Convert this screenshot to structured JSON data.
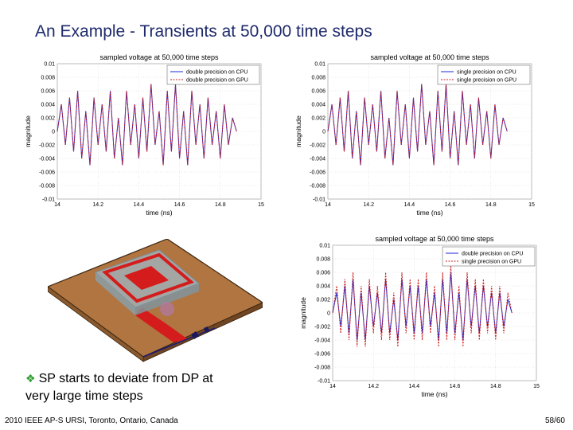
{
  "title": "An Example - Transients at 50,000 time steps",
  "caption": {
    "bullet_icon": "diamond-bullet-icon",
    "line1": "SP starts to deviate from DP at",
    "line2": "very large time steps"
  },
  "footer": {
    "left": "2010 IEEE AP-S URSI, Toronto, Ontario, Canada",
    "right": "58/60"
  },
  "figure_icon": "antenna-device-3d-model",
  "chart_data": [
    {
      "type": "line",
      "title": "sampled voltage at 50,000 time steps",
      "xlabel": "time (ns)",
      "ylabel": "magnitude",
      "xlim": [
        14,
        15
      ],
      "ylim": [
        -0.01,
        0.01
      ],
      "xticks": [
        "14",
        "14.2",
        "14.4",
        "14.6",
        "14.8",
        "15"
      ],
      "yticks": [
        "0.01",
        "0.008",
        "0.006",
        "0.004",
        "0.002",
        "0",
        "-0.002",
        "-0.004",
        "-0.006",
        "-0.008",
        "-0.01"
      ],
      "grid": true,
      "legend": "top-right",
      "series": [
        {
          "name": "double precision on CPU",
          "color": "#1f2ad6",
          "style": "solid",
          "x": [
            14.0,
            14.02,
            14.04,
            14.06,
            14.08,
            14.1,
            14.12,
            14.14,
            14.16,
            14.18,
            14.2,
            14.22,
            14.24,
            14.26,
            14.28,
            14.3,
            14.32,
            14.34,
            14.36,
            14.38,
            14.4,
            14.42,
            14.44,
            14.46,
            14.48,
            14.5,
            14.52,
            14.54,
            14.56,
            14.58,
            14.6,
            14.62,
            14.64,
            14.66,
            14.68,
            14.7,
            14.72,
            14.74,
            14.76,
            14.78,
            14.8,
            14.82,
            14.84,
            14.86,
            14.88
          ],
          "y": [
            0.0,
            0.004,
            -0.002,
            0.005,
            -0.003,
            0.006,
            -0.004,
            0.003,
            -0.005,
            0.005,
            -0.002,
            0.004,
            -0.003,
            0.006,
            -0.004,
            0.002,
            -0.005,
            0.006,
            -0.002,
            0.004,
            -0.004,
            0.005,
            -0.003,
            0.007,
            -0.002,
            0.003,
            -0.005,
            0.006,
            -0.003,
            0.007,
            -0.004,
            0.003,
            -0.005,
            0.006,
            -0.002,
            0.004,
            -0.004,
            0.005,
            -0.002,
            0.003,
            -0.004,
            0.004,
            -0.002,
            0.002,
            0.0
          ]
        },
        {
          "name": "double precision on GPU",
          "color": "#cc2020",
          "style": "dotted",
          "x": [
            14.0,
            14.02,
            14.04,
            14.06,
            14.08,
            14.1,
            14.12,
            14.14,
            14.16,
            14.18,
            14.2,
            14.22,
            14.24,
            14.26,
            14.28,
            14.3,
            14.32,
            14.34,
            14.36,
            14.38,
            14.4,
            14.42,
            14.44,
            14.46,
            14.48,
            14.5,
            14.52,
            14.54,
            14.56,
            14.58,
            14.6,
            14.62,
            14.64,
            14.66,
            14.68,
            14.7,
            14.72,
            14.74,
            14.76,
            14.78,
            14.8,
            14.82,
            14.84,
            14.86,
            14.88
          ],
          "y": [
            0.0,
            0.004,
            -0.002,
            0.005,
            -0.003,
            0.006,
            -0.004,
            0.003,
            -0.005,
            0.005,
            -0.002,
            0.004,
            -0.003,
            0.006,
            -0.004,
            0.002,
            -0.005,
            0.006,
            -0.002,
            0.004,
            -0.004,
            0.005,
            -0.003,
            0.007,
            -0.002,
            0.003,
            -0.005,
            0.006,
            -0.003,
            0.007,
            -0.004,
            0.003,
            -0.005,
            0.006,
            -0.002,
            0.004,
            -0.004,
            0.005,
            -0.002,
            0.003,
            -0.004,
            0.004,
            -0.002,
            0.002,
            0.0
          ]
        }
      ]
    },
    {
      "type": "line",
      "title": "sampled voltage at 50,000 time steps",
      "xlabel": "time (ns)",
      "ylabel": "magnitude",
      "xlim": [
        14,
        15
      ],
      "ylim": [
        -0.01,
        0.01
      ],
      "xticks": [
        "14",
        "14.2",
        "14.4",
        "14.6",
        "14.8",
        "15"
      ],
      "yticks": [
        "0.01",
        "0.008",
        "0.006",
        "0.004",
        "0.002",
        "0",
        "-0.002",
        "-0.004",
        "-0.006",
        "-0.008",
        "-0.01"
      ],
      "grid": true,
      "legend": "top-right",
      "series": [
        {
          "name": "single precision on CPU",
          "color": "#1f2ad6",
          "style": "solid",
          "x": [
            14.0,
            14.02,
            14.04,
            14.06,
            14.08,
            14.1,
            14.12,
            14.14,
            14.16,
            14.18,
            14.2,
            14.22,
            14.24,
            14.26,
            14.28,
            14.3,
            14.32,
            14.34,
            14.36,
            14.38,
            14.4,
            14.42,
            14.44,
            14.46,
            14.48,
            14.5,
            14.52,
            14.54,
            14.56,
            14.58,
            14.6,
            14.62,
            14.64,
            14.66,
            14.68,
            14.7,
            14.72,
            14.74,
            14.76,
            14.78,
            14.8,
            14.82,
            14.84,
            14.86,
            14.88
          ],
          "y": [
            0.0,
            0.004,
            -0.002,
            0.005,
            -0.003,
            0.006,
            -0.004,
            0.003,
            -0.005,
            0.005,
            -0.002,
            0.004,
            -0.003,
            0.006,
            -0.004,
            0.002,
            -0.005,
            0.006,
            -0.002,
            0.004,
            -0.004,
            0.005,
            -0.003,
            0.007,
            -0.002,
            0.003,
            -0.005,
            0.006,
            -0.003,
            0.007,
            -0.004,
            0.003,
            -0.005,
            0.006,
            -0.002,
            0.004,
            -0.004,
            0.005,
            -0.002,
            0.003,
            -0.004,
            0.004,
            -0.002,
            0.002,
            0.0
          ]
        },
        {
          "name": "single precision on GPU",
          "color": "#cc2020",
          "style": "dotted",
          "x": [
            14.0,
            14.02,
            14.04,
            14.06,
            14.08,
            14.1,
            14.12,
            14.14,
            14.16,
            14.18,
            14.2,
            14.22,
            14.24,
            14.26,
            14.28,
            14.3,
            14.32,
            14.34,
            14.36,
            14.38,
            14.4,
            14.42,
            14.44,
            14.46,
            14.48,
            14.5,
            14.52,
            14.54,
            14.56,
            14.58,
            14.6,
            14.62,
            14.64,
            14.66,
            14.68,
            14.7,
            14.72,
            14.74,
            14.76,
            14.78,
            14.8,
            14.82,
            14.84,
            14.86,
            14.88
          ],
          "y": [
            0.0,
            0.004,
            -0.002,
            0.005,
            -0.003,
            0.006,
            -0.004,
            0.003,
            -0.005,
            0.005,
            -0.002,
            0.004,
            -0.003,
            0.006,
            -0.004,
            0.002,
            -0.005,
            0.006,
            -0.002,
            0.004,
            -0.004,
            0.005,
            -0.003,
            0.007,
            -0.002,
            0.003,
            -0.005,
            0.006,
            -0.003,
            0.007,
            -0.004,
            0.003,
            -0.005,
            0.006,
            -0.002,
            0.004,
            -0.004,
            0.005,
            -0.002,
            0.003,
            -0.004,
            0.004,
            -0.002,
            0.002,
            0.0
          ]
        }
      ]
    },
    {
      "type": "line",
      "title": "sampled voltage at 50,000 time steps",
      "xlabel": "time (ns)",
      "ylabel": "magnitude",
      "xlim": [
        14,
        15
      ],
      "ylim": [
        -0.01,
        0.01
      ],
      "xticks": [
        "14",
        "14.2",
        "14.4",
        "14.6",
        "14.8",
        "15"
      ],
      "yticks": [
        "0.01",
        "0.008",
        "0.006",
        "0.004",
        "0.002",
        "0",
        "-0.002",
        "-0.004",
        "-0.006",
        "-0.008",
        "-0.01"
      ],
      "grid": true,
      "legend": "top-right",
      "series": [
        {
          "name": "double precision on CPU",
          "color": "#1f2ad6",
          "style": "solid",
          "x": [
            14.0,
            14.02,
            14.04,
            14.06,
            14.08,
            14.1,
            14.12,
            14.14,
            14.16,
            14.18,
            14.2,
            14.22,
            14.24,
            14.26,
            14.28,
            14.3,
            14.32,
            14.34,
            14.36,
            14.38,
            14.4,
            14.42,
            14.44,
            14.46,
            14.48,
            14.5,
            14.52,
            14.54,
            14.56,
            14.58,
            14.6,
            14.62,
            14.64,
            14.66,
            14.68,
            14.7,
            14.72,
            14.74,
            14.76,
            14.78,
            14.8,
            14.82,
            14.84,
            14.86,
            14.88
          ],
          "y": [
            0.0,
            0.003,
            -0.002,
            0.004,
            -0.003,
            0.005,
            -0.004,
            0.003,
            -0.004,
            0.004,
            -0.002,
            0.003,
            -0.003,
            0.005,
            -0.003,
            0.002,
            -0.004,
            0.005,
            -0.002,
            0.004,
            -0.003,
            0.004,
            -0.003,
            0.005,
            -0.002,
            0.003,
            -0.004,
            0.005,
            -0.003,
            0.006,
            -0.003,
            0.003,
            -0.004,
            0.005,
            -0.002,
            0.004,
            -0.003,
            0.004,
            -0.002,
            0.003,
            -0.003,
            0.003,
            -0.002,
            0.002,
            0.0
          ]
        },
        {
          "name": "single precision on GPU",
          "color": "#cc2020",
          "style": "dotted",
          "x": [
            14.0,
            14.02,
            14.04,
            14.06,
            14.08,
            14.1,
            14.12,
            14.14,
            14.16,
            14.18,
            14.2,
            14.22,
            14.24,
            14.26,
            14.28,
            14.3,
            14.32,
            14.34,
            14.36,
            14.38,
            14.4,
            14.42,
            14.44,
            14.46,
            14.48,
            14.5,
            14.52,
            14.54,
            14.56,
            14.58,
            14.6,
            14.62,
            14.64,
            14.66,
            14.68,
            14.7,
            14.72,
            14.74,
            14.76,
            14.78,
            14.8,
            14.82,
            14.84,
            14.86,
            14.88
          ],
          "y": [
            0.0,
            0.004,
            -0.003,
            0.005,
            -0.004,
            0.006,
            -0.005,
            0.004,
            -0.005,
            0.005,
            -0.003,
            0.004,
            -0.004,
            0.006,
            -0.004,
            0.003,
            -0.005,
            0.006,
            -0.003,
            0.005,
            -0.004,
            0.005,
            -0.004,
            0.006,
            -0.003,
            0.004,
            -0.005,
            0.006,
            -0.004,
            0.007,
            -0.004,
            0.004,
            -0.005,
            0.006,
            -0.003,
            0.005,
            -0.004,
            0.005,
            -0.003,
            0.004,
            -0.004,
            0.004,
            -0.003,
            0.003,
            0.0
          ]
        }
      ]
    }
  ]
}
